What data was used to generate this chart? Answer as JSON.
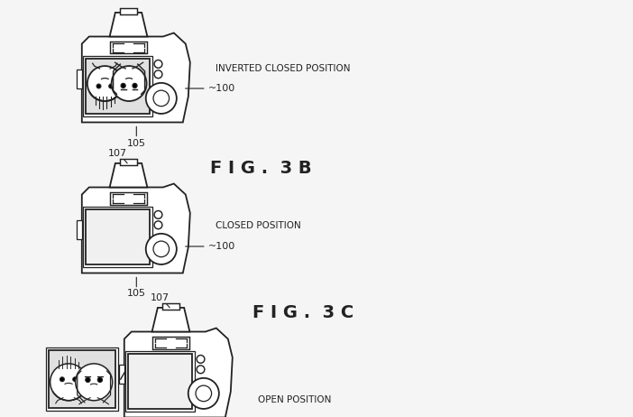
{
  "bg_color": "#f5f5f5",
  "fig_width": 7.02,
  "fig_height": 4.62,
  "dpi": 100,
  "title_3b": "F I G .  3 B",
  "title_3c": "F I G .  3 C",
  "label_inverted": "INVERTED CLOSED POSITION",
  "label_closed": "CLOSED POSITION",
  "label_open": "OPEN POSITION",
  "line_color": "#222222",
  "text_color": "#333333",
  "camera_fill": "#ffffff",
  "screen_fill": "#f0f0f0",
  "screen_fill_img": "#e0e0e0"
}
